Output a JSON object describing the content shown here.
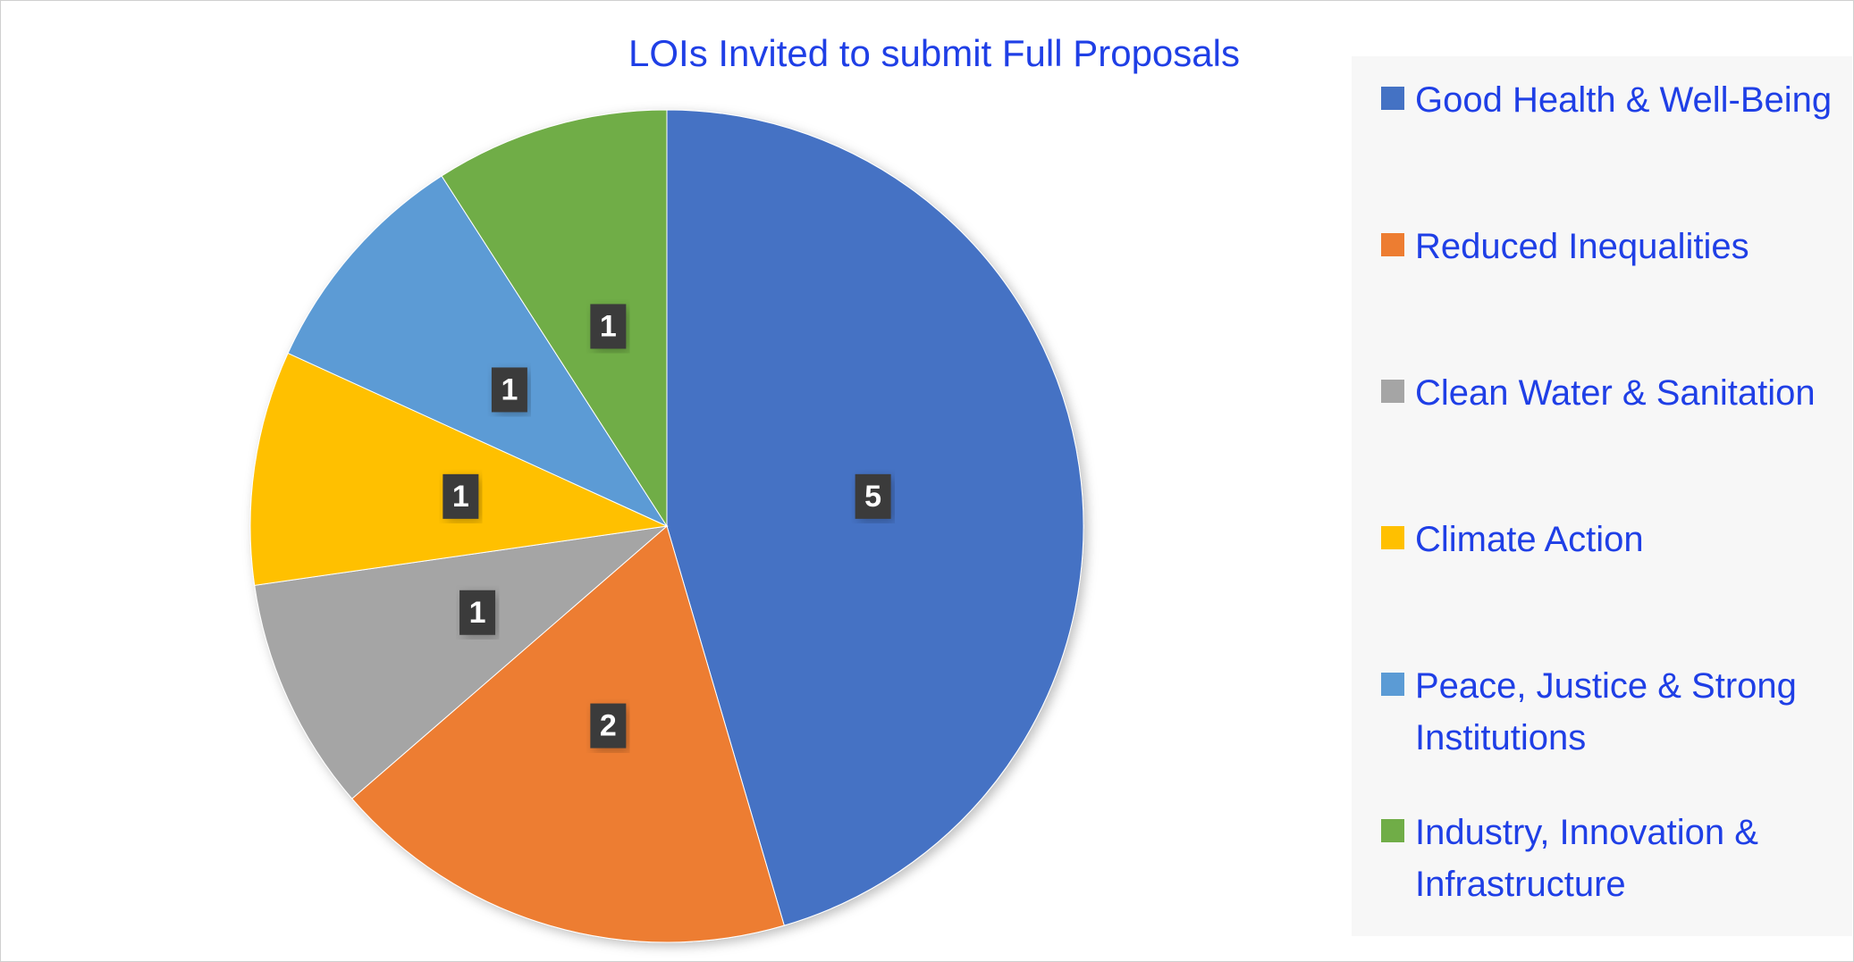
{
  "chart_data": {
    "type": "pie",
    "title": "LOIs Invited to submit Full Proposals",
    "categories": [
      "Good Health & Well-Being",
      "Reduced Inequalities",
      "Clean Water & Sanitation",
      "Climate Action",
      "Peace, Justice & Strong Institutions",
      "Industry, Innovation & Infrastructure"
    ],
    "values": [
      5,
      2,
      1,
      1,
      1,
      1
    ],
    "colors": [
      "#4472c4",
      "#ed7d31",
      "#a5a5a5",
      "#ffc000",
      "#5b9bd5",
      "#70ad47"
    ],
    "legend": "right"
  }
}
